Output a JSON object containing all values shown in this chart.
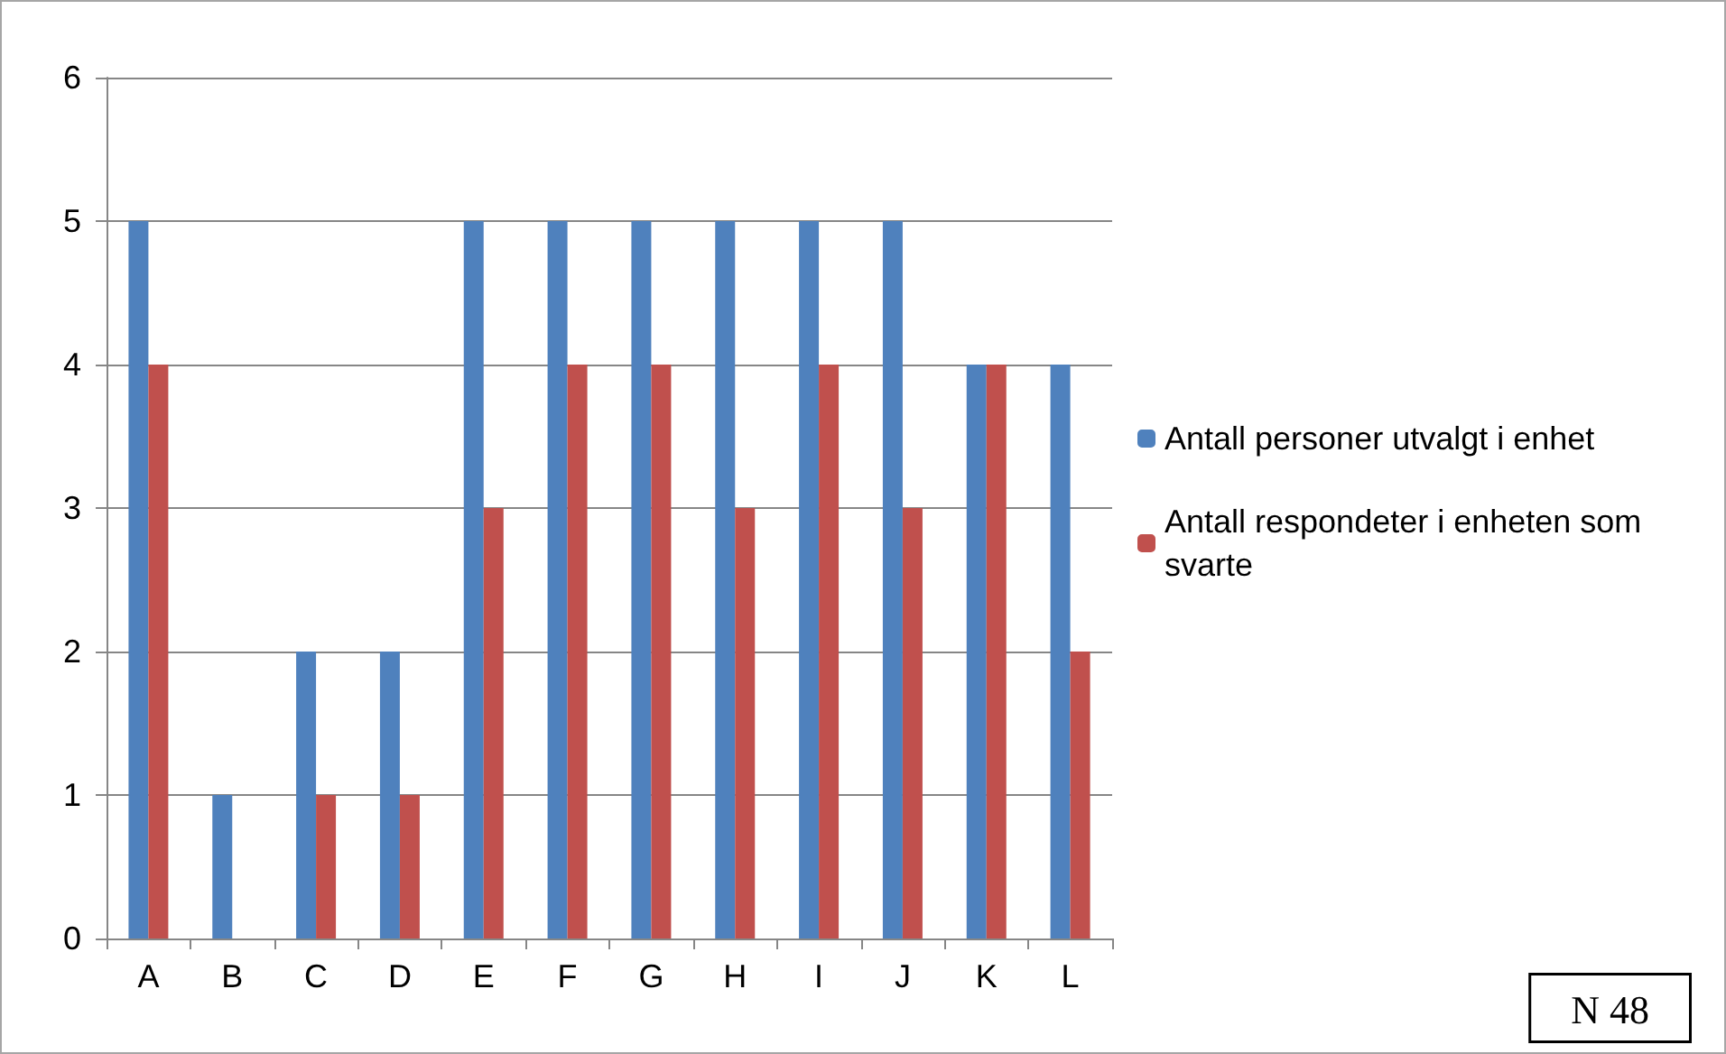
{
  "chart_data": {
    "type": "bar",
    "categories": [
      "A",
      "B",
      "C",
      "D",
      "E",
      "F",
      "G",
      "H",
      "I",
      "J",
      "K",
      "L"
    ],
    "series": [
      {
        "name": "Antall personer utvalgt i enhet",
        "color": "#4f81bd",
        "values": [
          5,
          1,
          2,
          2,
          5,
          5,
          5,
          5,
          5,
          5,
          4,
          4
        ]
      },
      {
        "name": "Antall respondeter i enheten som svarte",
        "color": "#c0504d",
        "values": [
          4,
          0,
          1,
          1,
          3,
          4,
          4,
          3,
          4,
          3,
          4,
          2
        ]
      }
    ],
    "ylim": [
      0,
      6
    ],
    "yticks": [
      0,
      1,
      2,
      3,
      4,
      5,
      6
    ],
    "grid": "y",
    "legend": "right",
    "annotations": [
      "N 48"
    ]
  }
}
